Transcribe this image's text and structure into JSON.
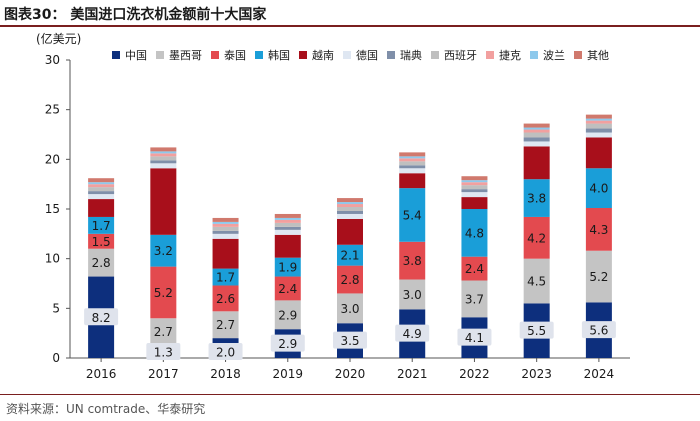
{
  "header": {
    "title": "图表30： 美国进口洗衣机金额前十大国家"
  },
  "source": "资料来源：UN comtrade、华泰研究",
  "chart_data": {
    "type": "bar",
    "stacked": true,
    "title": "图表30： 美国进口洗衣机金额前十大国家",
    "ylabel": "(亿美元)",
    "xlabel": "",
    "ylim": [
      0,
      30
    ],
    "yticks": [
      0,
      5,
      10,
      15,
      20,
      25,
      30
    ],
    "grid": false,
    "legend_position": "top",
    "categories": [
      "2016",
      "2017",
      "2018",
      "2019",
      "2020",
      "2021",
      "2022",
      "2023",
      "2024"
    ],
    "series": [
      {
        "name": "中国",
        "color": "#0d2f7d",
        "values": [
          8.2,
          1.3,
          2.0,
          2.9,
          3.5,
          4.9,
          4.1,
          5.5,
          5.6
        ],
        "labeled": true
      },
      {
        "name": "墨西哥",
        "color": "#c4c4c4",
        "values": [
          2.8,
          2.7,
          2.7,
          2.9,
          3.0,
          3.0,
          3.7,
          4.5,
          5.2
        ],
        "labeled": true
      },
      {
        "name": "泰国",
        "color": "#e34a4f",
        "values": [
          1.5,
          5.2,
          2.6,
          2.4,
          2.8,
          3.8,
          2.4,
          4.2,
          4.3
        ],
        "labeled": true
      },
      {
        "name": "韩国",
        "color": "#1a9ed8",
        "values": [
          1.7,
          3.2,
          1.7,
          1.9,
          2.1,
          5.4,
          4.8,
          3.8,
          4.0
        ],
        "labeled": true
      },
      {
        "name": "越南",
        "color": "#a80f1b",
        "values": [
          1.8,
          6.7,
          3.0,
          2.3,
          2.6,
          1.5,
          1.2,
          3.3,
          3.1
        ],
        "labeled": false
      },
      {
        "name": "德国",
        "color": "#dfe7f2",
        "values": [
          0.5,
          0.5,
          0.5,
          0.5,
          0.5,
          0.5,
          0.5,
          0.5,
          0.5
        ],
        "labeled": false
      },
      {
        "name": "瑞典",
        "color": "#7f8fa9",
        "values": [
          0.3,
          0.3,
          0.3,
          0.3,
          0.3,
          0.3,
          0.3,
          0.4,
          0.4
        ],
        "labeled": false
      },
      {
        "name": "西班牙",
        "color": "#bfbfbf",
        "values": [
          0.4,
          0.4,
          0.4,
          0.4,
          0.4,
          0.4,
          0.4,
          0.5,
          0.5
        ],
        "labeled": false
      },
      {
        "name": "捷克",
        "color": "#f2a09f",
        "values": [
          0.3,
          0.3,
          0.3,
          0.3,
          0.3,
          0.3,
          0.3,
          0.3,
          0.3
        ],
        "labeled": false
      },
      {
        "name": "波兰",
        "color": "#8ec9ec",
        "values": [
          0.2,
          0.2,
          0.2,
          0.2,
          0.2,
          0.2,
          0.2,
          0.2,
          0.2
        ],
        "labeled": false
      },
      {
        "name": "其他",
        "color": "#d0796d",
        "values": [
          0.4,
          0.4,
          0.4,
          0.4,
          0.4,
          0.4,
          0.4,
          0.4,
          0.4
        ],
        "labeled": false
      }
    ]
  }
}
